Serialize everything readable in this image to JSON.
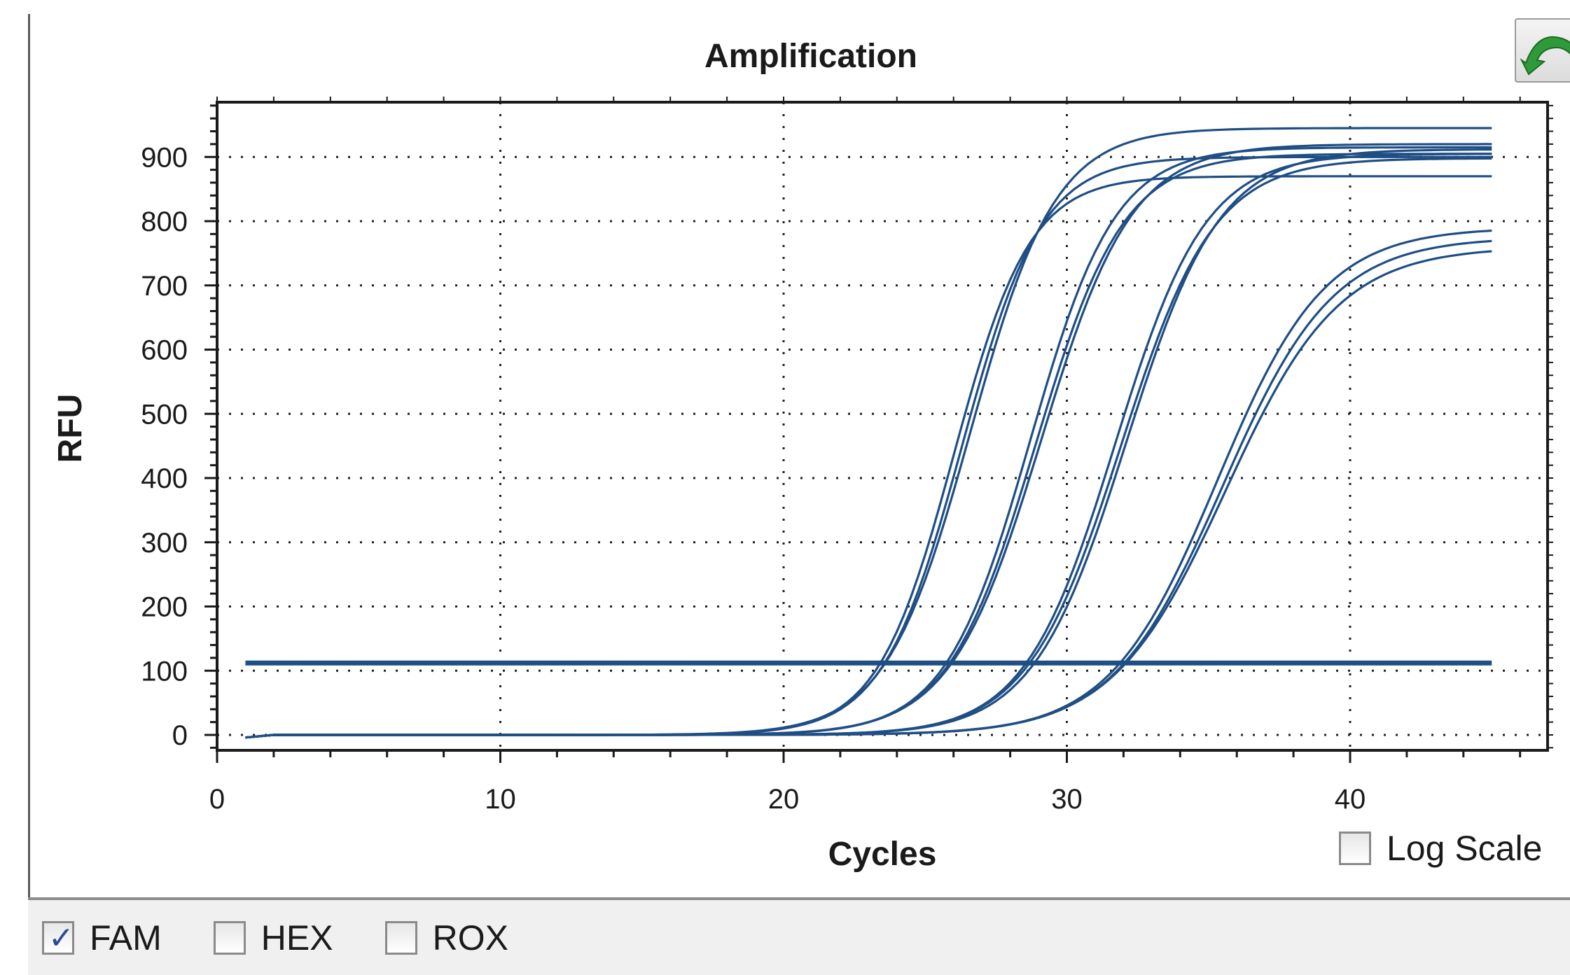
{
  "chart_data": {
    "type": "line",
    "title": "Amplification",
    "xlabel": "Cycles",
    "ylabel": "RFU",
    "xlim": [
      0,
      47
    ],
    "ylim": [
      -40,
      1000
    ],
    "xticks": [
      0,
      10,
      20,
      30,
      40
    ],
    "yticks": [
      0,
      100,
      200,
      300,
      400,
      500,
      600,
      700,
      800,
      900
    ],
    "grid": true,
    "line_color": "#1f4e85",
    "threshold": 112,
    "series": [
      {
        "x0": 26.0,
        "plateau": 870,
        "slope": 1.35
      },
      {
        "x0": 26.3,
        "plateau": 900,
        "slope": 1.4
      },
      {
        "x0": 26.6,
        "plateau": 945,
        "slope": 1.5
      },
      {
        "x0": 28.7,
        "plateau": 915,
        "slope": 1.5
      },
      {
        "x0": 28.9,
        "plateau": 905,
        "slope": 1.55
      },
      {
        "x0": 29.1,
        "plateau": 920,
        "slope": 1.6
      },
      {
        "x0": 31.7,
        "plateau": 905,
        "slope": 1.6
      },
      {
        "x0": 31.9,
        "plateau": 898,
        "slope": 1.65
      },
      {
        "x0": 32.1,
        "plateau": 912,
        "slope": 1.65
      },
      {
        "x0": 35.3,
        "plateau": 790,
        "slope": 1.9
      },
      {
        "x0": 35.5,
        "plateau": 775,
        "slope": 1.95
      },
      {
        "x0": 35.6,
        "plateau": 760,
        "slope": 2.0
      }
    ],
    "x_range": [
      1,
      45
    ]
  },
  "controls": {
    "log_scale_label": "Log Scale",
    "log_scale_checked": false
  },
  "channels": [
    {
      "label": "FAM",
      "checked": true
    },
    {
      "label": "HEX",
      "checked": false
    },
    {
      "label": "ROX",
      "checked": false
    }
  ],
  "icons": {
    "toolbar_button": "back-arrow-icon",
    "check_glyph": "✓"
  }
}
